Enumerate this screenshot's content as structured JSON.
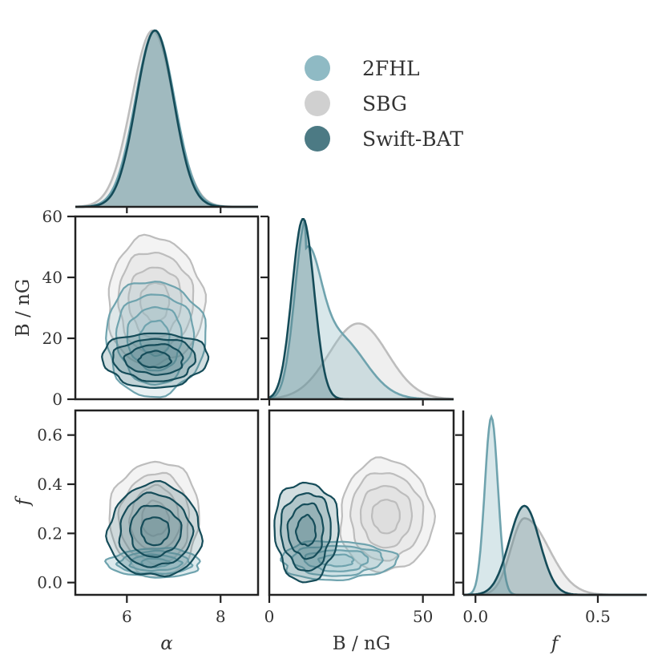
{
  "chart_data": {
    "type": "corner",
    "parameters": [
      {
        "symbol": "α",
        "axis_label": "α",
        "ticks": [
          6,
          8
        ],
        "range": [
          4.9,
          8.8
        ]
      },
      {
        "symbol": "B",
        "axis_label": "B / nG",
        "ticks": [
          0,
          50
        ],
        "diag_ticks": [
          0,
          20,
          40,
          60
        ],
        "range": [
          0,
          60
        ]
      },
      {
        "symbol": "f",
        "axis_label": "f",
        "ticks": [
          0.0,
          0.5
        ],
        "range": [
          -0.05,
          0.7
        ],
        "left_ticks": [
          "0.0",
          "0.2",
          "0.4",
          "0.6"
        ]
      }
    ],
    "b_axis_left": {
      "ticks": [
        "0",
        "20",
        "40",
        "60"
      ],
      "label": "B / nG"
    },
    "f_axis_left": {
      "ticks": [
        "0.0",
        "0.2",
        "0.4",
        "0.6"
      ],
      "label": "f"
    },
    "x_tick_labels": {
      "alpha": [
        "6",
        "8"
      ],
      "B": [
        "0",
        "50"
      ],
      "f": [
        "0.0",
        "0.5"
      ]
    },
    "legend": {
      "placement": "top-right",
      "entries": [
        {
          "name": "2FHL",
          "color": "#8fbac4"
        },
        {
          "name": "SBG",
          "color": "#d0d0d0"
        },
        {
          "name": "Swift-BAT",
          "color": "#4c7a84"
        }
      ]
    },
    "series": [
      {
        "name": "2FHL",
        "fill": "#8fbac4",
        "stroke": "#6fa3ae",
        "alpha": {
          "mean": 6.6,
          "sd": 0.42
        },
        "B": {
          "mean": 12,
          "sd": 6,
          "skew": 2.2
        },
        "f": {
          "mean": 0.06,
          "sd": 0.03
        },
        "alpha_B_center": [
          6.6,
          20
        ],
        "B_f_center": [
          16,
          0.1
        ],
        "alpha_f_center": [
          6.6,
          0.08
        ]
      },
      {
        "name": "SBG",
        "fill": "#d0d0d0",
        "stroke": "#bdbdbd",
        "alpha": {
          "mean": 6.55,
          "sd": 0.45
        },
        "B": {
          "mean": 30,
          "sd": 10
        },
        "f": {
          "mean": 0.2,
          "sd": 0.09
        },
        "alpha_B_center": [
          6.6,
          30
        ],
        "B_f_center": [
          38,
          0.26
        ],
        "alpha_f_center": [
          6.6,
          0.26
        ]
      },
      {
        "name": "Swift-BAT",
        "fill": "#4c7a84",
        "stroke": "#154c59",
        "alpha": {
          "mean": 6.6,
          "sd": 0.4
        },
        "B": {
          "mean": 11,
          "sd": 4
        },
        "f": {
          "mean": 0.2,
          "sd": 0.07
        },
        "alpha_B_center": [
          6.6,
          13
        ],
        "B_f_center": [
          11,
          0.2
        ],
        "alpha_f_center": [
          6.6,
          0.2
        ]
      }
    ]
  }
}
